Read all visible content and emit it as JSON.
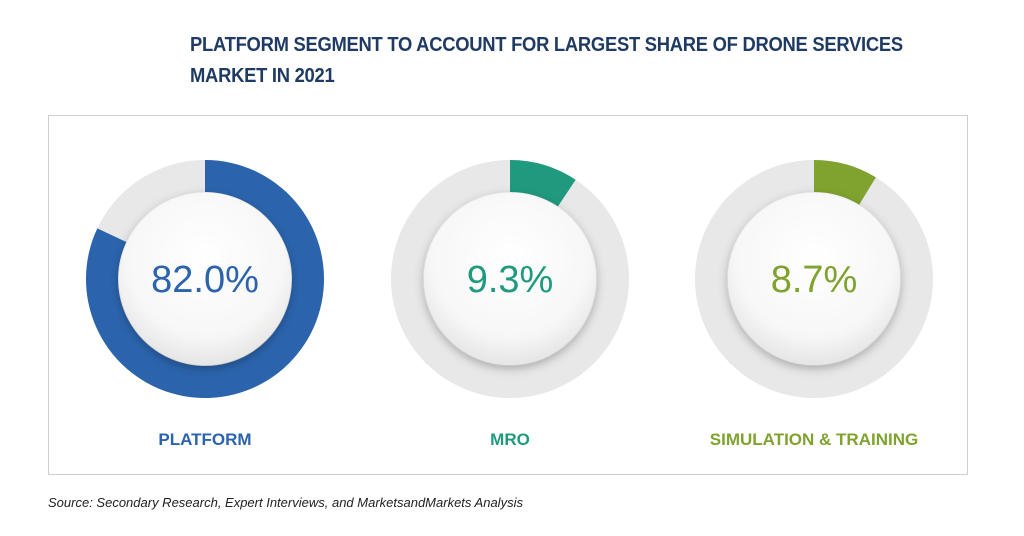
{
  "title": "PLATFORM SEGMENT TO ACCOUNT FOR LARGEST SHARE OF DRONE SERVICES MARKET IN 2021",
  "source": "Source: Secondary Research, Expert Interviews, and MarketsandMarkets Analysis",
  "colors": {
    "track": "#e8e8e8",
    "panel_border": "#cfcfcf",
    "title": "#1f3b63"
  },
  "chart_data": {
    "type": "pie",
    "variant": "donut",
    "categories": [
      "PLATFORM",
      "MRO",
      "SIMULATION & TRAINING"
    ],
    "values": [
      82.0,
      9.3,
      8.7
    ],
    "value_labels": [
      "82.0%",
      "9.3%",
      "8.7%"
    ],
    "unit": "%",
    "series_colors": [
      "#2b64ad",
      "#1f9a7e",
      "#7fa32e"
    ],
    "title": "PLATFORM SEGMENT TO ACCOUNT FOR LARGEST SHARE OF DRONE SERVICES MARKET IN 2021"
  }
}
